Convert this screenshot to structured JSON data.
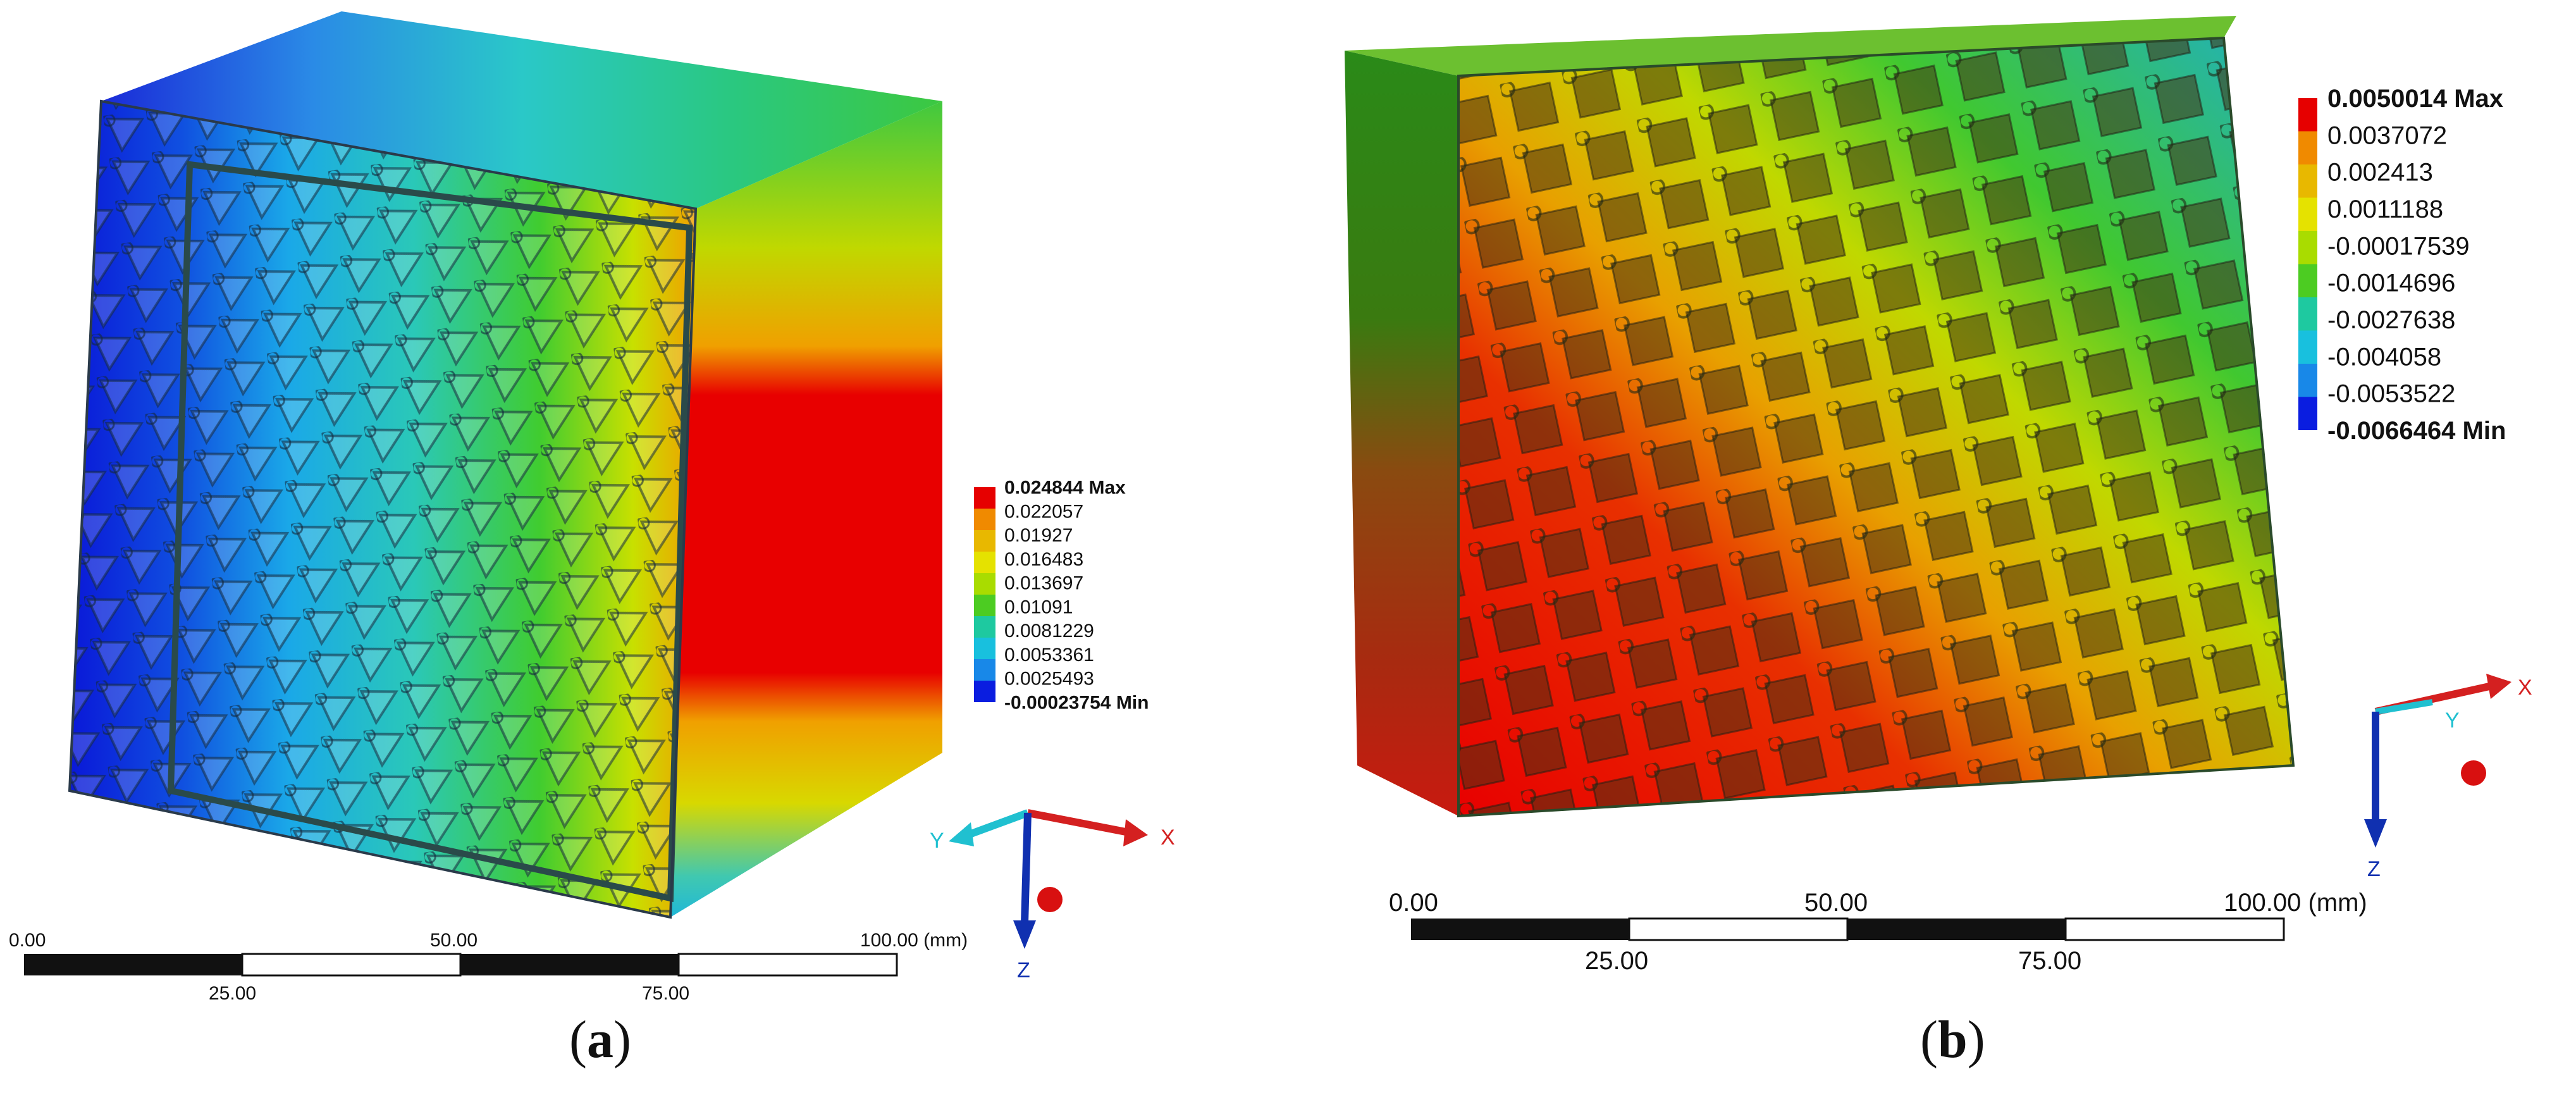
{
  "panel_a": {
    "caption_open": "(",
    "caption_letter": "a",
    "caption_close": ")",
    "legend": {
      "max_label": "0.024844 Max",
      "mid_labels": [
        "0.022057",
        "0.01927",
        "0.016483",
        "0.013697",
        "0.01091",
        "0.0081229",
        "0.0053361",
        "0.0025493"
      ],
      "min_label": "-0.00023754 Min",
      "colors": [
        "#e60000",
        "#f08a00",
        "#e8b800",
        "#e5e200",
        "#a9dc00",
        "#4ccc22",
        "#1ec9a0",
        "#18c0de",
        "#1888e8",
        "#0a1de0"
      ]
    },
    "scale_bar": {
      "top_labels": [
        "0.00",
        "50.00",
        "100.00 (mm)"
      ],
      "bottom_labels": [
        "25.00",
        "75.00"
      ]
    },
    "axes": {
      "x": "X",
      "y": "Y",
      "z": "Z"
    }
  },
  "panel_b": {
    "caption_open": "(",
    "caption_letter": "b",
    "caption_close": ")",
    "legend": {
      "max_label": "0.0050014 Max",
      "mid_labels": [
        "0.0037072",
        "0.002413",
        "0.0011188",
        "-0.00017539",
        "-0.0014696",
        "-0.0027638",
        "-0.004058",
        "-0.0053522"
      ],
      "min_label": "-0.0066464 Min",
      "colors": [
        "#e60000",
        "#f08a00",
        "#e8b800",
        "#e5e200",
        "#a9dc00",
        "#4ccc22",
        "#1ec9a0",
        "#18c0de",
        "#1888e8",
        "#0a1de0"
      ]
    },
    "scale_bar": {
      "top_labels": [
        "0.00",
        "50.00",
        "100.00 (mm)"
      ],
      "bottom_labels": [
        "25.00",
        "75.00"
      ]
    },
    "axes": {
      "x": "X",
      "y": "Y",
      "z": "Z"
    }
  },
  "colors": {
    "axis_x": "#d42020",
    "axis_y": "#20c0d0",
    "axis_z": "#1030b0",
    "frame": "#2a4a4a"
  }
}
